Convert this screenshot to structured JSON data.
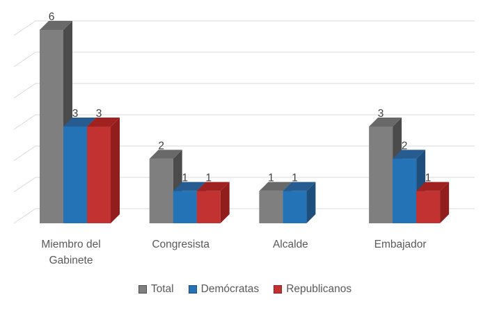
{
  "chart_data": {
    "type": "bar",
    "variant": "3d-clustered-column",
    "title": "",
    "categories": [
      "Miembro del Gabinete",
      "Congresista",
      "Alcalde",
      "Embajador"
    ],
    "category_label_lines": [
      [
        "Miembro del",
        "Gabinete"
      ],
      [
        "Congresista"
      ],
      [
        "Alcalde"
      ],
      [
        "Embajador"
      ]
    ],
    "series": [
      {
        "name": "Total",
        "values": [
          6,
          2,
          1,
          3
        ],
        "color": "#7F7F7F",
        "top_color": "#696969",
        "side_color": "#4B4B4B"
      },
      {
        "name": "Demócratas",
        "values": [
          3,
          1,
          1,
          2
        ],
        "color": "#2573B7",
        "top_color": "#265C8F",
        "side_color": "#1D4E7C"
      },
      {
        "name": "Republicanos",
        "values": [
          3,
          1,
          0,
          1
        ],
        "color": "#C23231",
        "top_color": "#A02220",
        "side_color": "#911D1C"
      }
    ],
    "data_labels": [
      "6",
      "3",
      "3",
      "2",
      "1",
      "1",
      "1",
      "1",
      "3",
      "2",
      "1"
    ],
    "ylim": [
      0,
      6
    ],
    "grid": true,
    "gridline_color": "#D9D9D9",
    "legend_position": "bottom",
    "data_label_color": "#3F3F3F",
    "axis_text_color": "#595959",
    "background": "#FFFFFF",
    "xlabel": "",
    "ylabel": ""
  }
}
